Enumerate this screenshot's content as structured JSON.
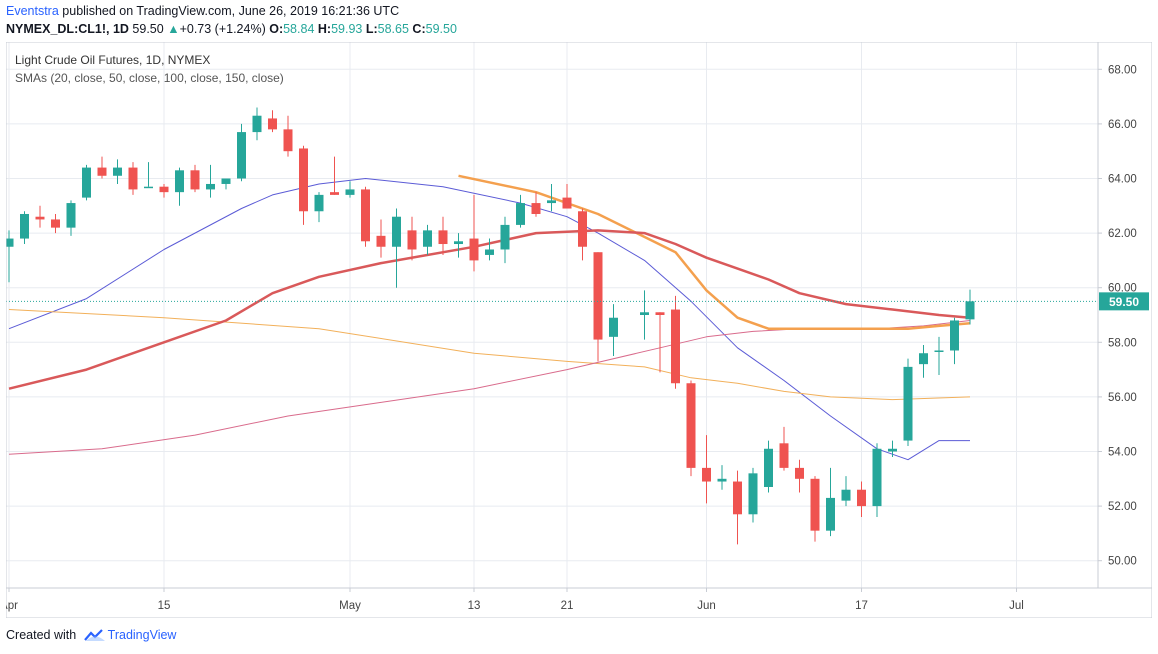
{
  "header": {
    "publisher": "Eventstra",
    "published_text": "published on TradingView.com, June 26, 2019 16:21:36 UTC",
    "symbol": "NYMEX_DL:CL1!, 1D",
    "last": "59.50",
    "change": "+0.73 (+1.24%)",
    "open_label": "O:",
    "open": "58.84",
    "high_label": "H:",
    "high": "59.93",
    "low_label": "L:",
    "low": "58.65",
    "close_label": "C:",
    "close": "59.50"
  },
  "legend": {
    "title": "Light Crude Oil Futures, 1D, NYMEX",
    "sma_label": "SMAs (20, close, 50, close, 100, close, 150, close)"
  },
  "footer": {
    "created_with": "Created with",
    "brand": "TradingView"
  },
  "colors": {
    "up": "#26a69a",
    "down": "#ef5350",
    "sma20": "#5b5bd6",
    "sma50": "#f5a85a",
    "sma100": "#f2b05a",
    "sma150": "#d96b8c",
    "sma_thick_orange": "#f4a04e",
    "sma_thick_red": "#d9595a",
    "price_line": "#26a69a"
  },
  "chart_data": {
    "type": "candlestick",
    "title": "Light Crude Oil Futures, 1D, NYMEX",
    "ylim": [
      49,
      69
    ],
    "y_ticks": [
      "68.00",
      "66.00",
      "64.00",
      "62.00",
      "60.00",
      "58.00",
      "56.00",
      "54.00",
      "52.00",
      "50.00"
    ],
    "x_ticks": [
      "Apr",
      "15",
      "May",
      "13",
      "21",
      "Jun",
      "17",
      "Jul"
    ],
    "last_price": 59.5,
    "last_price_label": "59.50",
    "candles": [
      {
        "d": "2019-04-01",
        "o": 61.5,
        "h": 62.1,
        "l": 60.2,
        "c": 61.8
      },
      {
        "d": "2019-04-02",
        "o": 61.8,
        "h": 62.8,
        "l": 61.6,
        "c": 62.7
      },
      {
        "d": "2019-04-03",
        "o": 62.6,
        "h": 63.0,
        "l": 62.2,
        "c": 62.5
      },
      {
        "d": "2019-04-04",
        "o": 62.5,
        "h": 62.7,
        "l": 62.0,
        "c": 62.2
      },
      {
        "d": "2019-04-05",
        "o": 62.2,
        "h": 63.2,
        "l": 61.9,
        "c": 63.1
      },
      {
        "d": "2019-04-08",
        "o": 63.3,
        "h": 64.5,
        "l": 63.2,
        "c": 64.4
      },
      {
        "d": "2019-04-09",
        "o": 64.4,
        "h": 64.8,
        "l": 64.0,
        "c": 64.1
      },
      {
        "d": "2019-04-10",
        "o": 64.1,
        "h": 64.7,
        "l": 63.8,
        "c": 64.4
      },
      {
        "d": "2019-04-11",
        "o": 64.4,
        "h": 64.6,
        "l": 63.4,
        "c": 63.6
      },
      {
        "d": "2019-04-12",
        "o": 63.7,
        "h": 64.6,
        "l": 63.7,
        "c": 63.7
      },
      {
        "d": "2019-04-15",
        "o": 63.7,
        "h": 63.8,
        "l": 63.3,
        "c": 63.5
      },
      {
        "d": "2019-04-16",
        "o": 63.5,
        "h": 64.4,
        "l": 63.0,
        "c": 64.3
      },
      {
        "d": "2019-04-17",
        "o": 64.3,
        "h": 64.5,
        "l": 63.5,
        "c": 63.6
      },
      {
        "d": "2019-04-18",
        "o": 63.6,
        "h": 64.5,
        "l": 63.3,
        "c": 63.8
      },
      {
        "d": "2019-04-19",
        "o": 63.8,
        "h": 64.0,
        "l": 63.6,
        "c": 64.0
      },
      {
        "d": "2019-04-22",
        "o": 64.0,
        "h": 66.0,
        "l": 63.9,
        "c": 65.7
      },
      {
        "d": "2019-04-23",
        "o": 65.7,
        "h": 66.6,
        "l": 65.4,
        "c": 66.3
      },
      {
        "d": "2019-04-24",
        "o": 66.2,
        "h": 66.5,
        "l": 65.7,
        "c": 65.8
      },
      {
        "d": "2019-04-25",
        "o": 65.8,
        "h": 66.3,
        "l": 64.8,
        "c": 65.0
      },
      {
        "d": "2019-04-26",
        "o": 65.1,
        "h": 65.2,
        "l": 62.3,
        "c": 62.8
      },
      {
        "d": "2019-04-29",
        "o": 62.8,
        "h": 63.5,
        "l": 62.4,
        "c": 63.4
      },
      {
        "d": "2019-04-30",
        "o": 63.5,
        "h": 64.8,
        "l": 63.4,
        "c": 63.4
      },
      {
        "d": "2019-05-01",
        "o": 63.4,
        "h": 63.9,
        "l": 63.3,
        "c": 63.6
      },
      {
        "d": "2019-05-02",
        "o": 63.6,
        "h": 63.7,
        "l": 61.5,
        "c": 61.7
      },
      {
        "d": "2019-05-03",
        "o": 61.9,
        "h": 62.5,
        "l": 61.1,
        "c": 61.5
      },
      {
        "d": "2019-05-06",
        "o": 61.5,
        "h": 62.9,
        "l": 60.0,
        "c": 62.6
      },
      {
        "d": "2019-05-07",
        "o": 62.1,
        "h": 62.6,
        "l": 61.0,
        "c": 61.4
      },
      {
        "d": "2019-05-08",
        "o": 61.5,
        "h": 62.3,
        "l": 61.2,
        "c": 62.1
      },
      {
        "d": "2019-05-09",
        "o": 62.1,
        "h": 62.6,
        "l": 61.2,
        "c": 61.6
      },
      {
        "d": "2019-05-10",
        "o": 61.6,
        "h": 62.0,
        "l": 61.1,
        "c": 61.7
      },
      {
        "d": "2019-05-13",
        "o": 61.8,
        "h": 63.4,
        "l": 60.6,
        "c": 61.0
      },
      {
        "d": "2019-05-14",
        "o": 61.2,
        "h": 61.8,
        "l": 61.0,
        "c": 61.4
      },
      {
        "d": "2019-05-15",
        "o": 61.4,
        "h": 62.6,
        "l": 60.9,
        "c": 62.3
      },
      {
        "d": "2019-05-16",
        "o": 62.3,
        "h": 63.4,
        "l": 62.2,
        "c": 63.1
      },
      {
        "d": "2019-05-17",
        "o": 63.1,
        "h": 63.5,
        "l": 62.6,
        "c": 62.7
      },
      {
        "d": "2019-05-20",
        "o": 63.1,
        "h": 63.8,
        "l": 62.8,
        "c": 63.2
      },
      {
        "d": "2019-05-21",
        "o": 63.3,
        "h": 63.8,
        "l": 62.9,
        "c": 62.9
      },
      {
        "d": "2019-05-22",
        "o": 62.8,
        "h": 62.9,
        "l": 61.0,
        "c": 61.5
      },
      {
        "d": "2019-05-23",
        "o": 61.3,
        "h": 61.3,
        "l": 57.3,
        "c": 58.1
      },
      {
        "d": "2019-05-24",
        "o": 58.2,
        "h": 59.4,
        "l": 57.5,
        "c": 58.9
      },
      {
        "d": "2019-05-28",
        "o": 59.0,
        "h": 59.9,
        "l": 58.1,
        "c": 59.1
      },
      {
        "d": "2019-05-29",
        "o": 59.1,
        "h": 59.1,
        "l": 56.9,
        "c": 59.0
      },
      {
        "d": "2019-05-30",
        "o": 59.2,
        "h": 59.7,
        "l": 56.3,
        "c": 56.5
      },
      {
        "d": "2019-05-31",
        "o": 56.5,
        "h": 56.6,
        "l": 53.1,
        "c": 53.4
      },
      {
        "d": "2019-06-03",
        "o": 53.4,
        "h": 54.6,
        "l": 52.1,
        "c": 52.9
      },
      {
        "d": "2019-06-04",
        "o": 52.9,
        "h": 53.5,
        "l": 52.6,
        "c": 53.0
      },
      {
        "d": "2019-06-05",
        "o": 52.9,
        "h": 53.3,
        "l": 50.6,
        "c": 51.7
      },
      {
        "d": "2019-06-06",
        "o": 51.7,
        "h": 53.4,
        "l": 51.4,
        "c": 53.2
      },
      {
        "d": "2019-06-07",
        "o": 52.7,
        "h": 54.4,
        "l": 52.5,
        "c": 54.1
      },
      {
        "d": "2019-06-10",
        "o": 54.3,
        "h": 54.9,
        "l": 53.3,
        "c": 53.4
      },
      {
        "d": "2019-06-11",
        "o": 53.4,
        "h": 53.7,
        "l": 52.5,
        "c": 53.0
      },
      {
        "d": "2019-06-12",
        "o": 53.0,
        "h": 53.1,
        "l": 50.7,
        "c": 51.1
      },
      {
        "d": "2019-06-13",
        "o": 51.1,
        "h": 53.4,
        "l": 50.9,
        "c": 52.3
      },
      {
        "d": "2019-06-14",
        "o": 52.2,
        "h": 53.1,
        "l": 52.0,
        "c": 52.6
      },
      {
        "d": "2019-06-17",
        "o": 52.6,
        "h": 52.9,
        "l": 51.6,
        "c": 52.0
      },
      {
        "d": "2019-06-18",
        "o": 52.0,
        "h": 54.3,
        "l": 51.6,
        "c": 54.1
      },
      {
        "d": "2019-06-19",
        "o": 54.0,
        "h": 54.4,
        "l": 53.8,
        "c": 54.1
      },
      {
        "d": "2019-06-20",
        "o": 54.4,
        "h": 57.4,
        "l": 54.2,
        "c": 57.1
      },
      {
        "d": "2019-06-21",
        "o": 57.2,
        "h": 57.9,
        "l": 56.7,
        "c": 57.6
      },
      {
        "d": "2019-06-24",
        "o": 57.7,
        "h": 58.2,
        "l": 56.8,
        "c": 57.7
      },
      {
        "d": "2019-06-25",
        "o": 57.7,
        "h": 58.9,
        "l": 57.2,
        "c": 58.8
      },
      {
        "d": "2019-06-26",
        "o": 58.84,
        "h": 59.93,
        "l": 58.65,
        "c": 59.5
      }
    ],
    "series": [
      {
        "values": [
          [
            0,
            58.5
          ],
          [
            5,
            59.6
          ],
          [
            10,
            61.4
          ],
          [
            15,
            62.9
          ],
          [
            17,
            63.4
          ],
          [
            20,
            63.8
          ],
          [
            23,
            64.0
          ],
          [
            28,
            63.7
          ],
          [
            33,
            63.1
          ],
          [
            36,
            62.6
          ],
          [
            38,
            62.0
          ],
          [
            40,
            61.0
          ],
          [
            43,
            59.5
          ],
          [
            46,
            57.8
          ],
          [
            49,
            56.6
          ],
          [
            52,
            55.3
          ],
          [
            55,
            54.1
          ],
          [
            57,
            53.7
          ],
          [
            59,
            54.4
          ],
          [
            60,
            54.4
          ],
          [
            61,
            54.4
          ]
        ]
      },
      {
        "values": [
          [
            0,
            59.2
          ],
          [
            10,
            58.9
          ],
          [
            20,
            58.5
          ],
          [
            30,
            57.6
          ],
          [
            36,
            57.3
          ],
          [
            40,
            57.1
          ],
          [
            43,
            56.7
          ],
          [
            46,
            56.5
          ],
          [
            49,
            56.2
          ],
          [
            52,
            56.0
          ],
          [
            56,
            55.9
          ],
          [
            61,
            56.0
          ]
        ]
      },
      {
        "values": [
          [
            0,
            53.9
          ],
          [
            6,
            54.1
          ],
          [
            12,
            54.6
          ],
          [
            18,
            55.3
          ],
          [
            24,
            55.8
          ],
          [
            30,
            56.3
          ],
          [
            36,
            57.0
          ],
          [
            41,
            57.8
          ],
          [
            44,
            58.2
          ],
          [
            47,
            58.4
          ],
          [
            50,
            58.5
          ],
          [
            55,
            58.5
          ],
          [
            58,
            58.6
          ],
          [
            61,
            58.8
          ]
        ]
      },
      {
        "values": [
          [
            29,
            64.1
          ],
          [
            34,
            63.5
          ],
          [
            38,
            62.7
          ],
          [
            42,
            61.3
          ],
          [
            44,
            59.9
          ],
          [
            46,
            58.9
          ],
          [
            48,
            58.5
          ],
          [
            50,
            58.5
          ],
          [
            54,
            58.5
          ],
          [
            57,
            58.5
          ],
          [
            59,
            58.6
          ],
          [
            61,
            58.7
          ]
        ]
      },
      {
        "values": [
          [
            0,
            56.3
          ],
          [
            5,
            57.0
          ],
          [
            10,
            58.0
          ],
          [
            14,
            58.8
          ],
          [
            17,
            59.8
          ],
          [
            20,
            60.4
          ],
          [
            24,
            60.9
          ],
          [
            30,
            61.5
          ],
          [
            34,
            62.0
          ],
          [
            38,
            62.1
          ],
          [
            40,
            62.0
          ],
          [
            42,
            61.6
          ],
          [
            44,
            61.1
          ],
          [
            46,
            60.7
          ],
          [
            48,
            60.3
          ],
          [
            50,
            59.8
          ],
          [
            53,
            59.4
          ],
          [
            56,
            59.2
          ],
          [
            59,
            59.0
          ],
          [
            61,
            58.9
          ]
        ]
      }
    ]
  }
}
